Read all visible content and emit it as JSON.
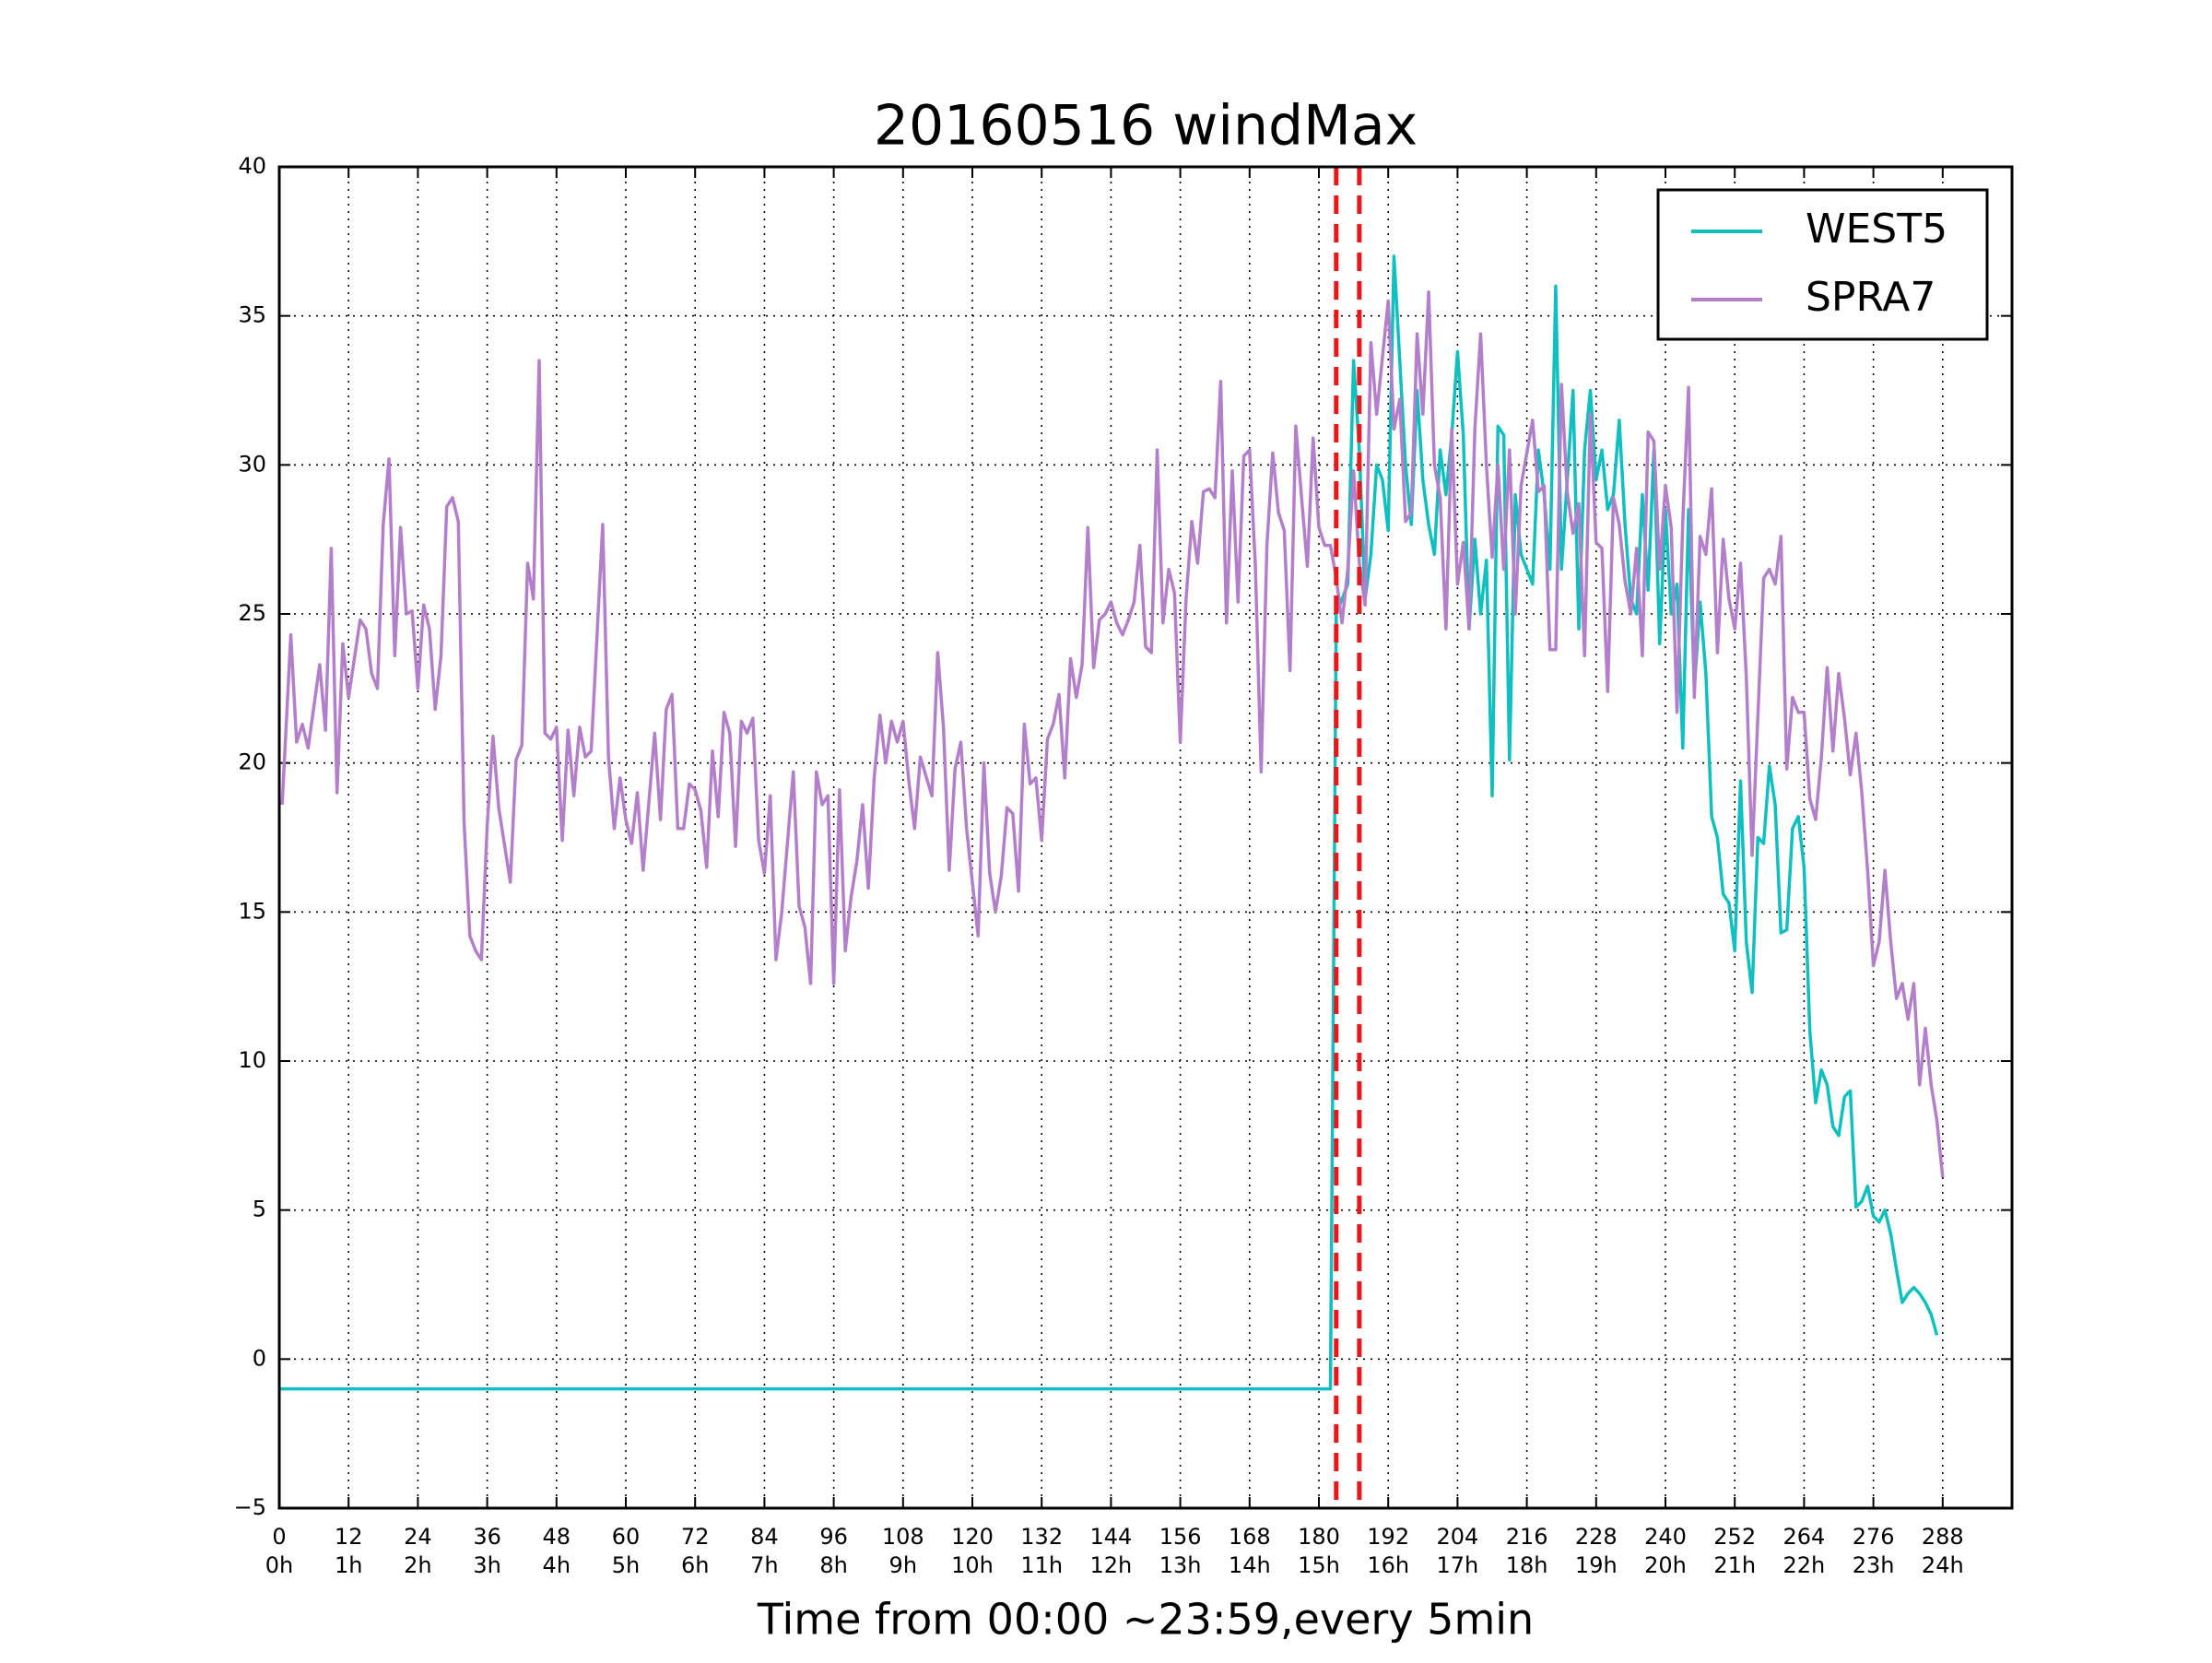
{
  "chart_data": {
    "type": "line",
    "title": "20160516 windMax",
    "x_label": "Time from 00:00 ~23:59,every 5min",
    "xlim": [
      0,
      300
    ],
    "ylim": [
      -5,
      40
    ],
    "xticks": [
      0,
      12,
      24,
      36,
      48,
      60,
      72,
      84,
      96,
      108,
      120,
      132,
      144,
      156,
      168,
      180,
      192,
      204,
      216,
      228,
      240,
      252,
      264,
      276,
      288
    ],
    "xtick_hours": [
      "0h",
      "1h",
      "2h",
      "3h",
      "4h",
      "5h",
      "6h",
      "7h",
      "8h",
      "9h",
      "10h",
      "11h",
      "12h",
      "13h",
      "14h",
      "15h",
      "16h",
      "17h",
      "18h",
      "19h",
      "20h",
      "21h",
      "22h",
      "23h",
      "24h"
    ],
    "yticks": [
      {
        "value": -5,
        "label": "−5"
      },
      0,
      5,
      10,
      15,
      20,
      25,
      30,
      35,
      40
    ],
    "grid": true,
    "legend": "upper right",
    "vlines": [
      183,
      187
    ],
    "vline_color": "#e8171b",
    "series": [
      {
        "name": "WEST5",
        "color": "#10bfbf",
        "x": [
          0,
          182,
          183,
          184,
          185,
          186,
          187,
          188,
          189,
          190,
          191,
          192,
          193,
          194,
          195,
          196,
          197,
          198,
          199,
          200,
          201,
          202,
          203,
          204,
          205,
          206,
          207,
          208,
          209,
          210,
          211,
          212,
          213,
          214,
          215,
          216,
          217,
          218,
          219,
          220,
          221,
          222,
          223,
          224,
          225,
          226,
          227,
          228,
          229,
          230,
          231,
          232,
          233,
          234,
          235,
          236,
          237,
          238,
          239,
          240,
          241,
          242,
          243,
          244,
          245,
          246,
          247,
          248,
          249,
          250,
          251,
          252,
          253,
          254,
          255,
          256,
          257,
          258,
          259,
          260,
          261,
          262,
          263,
          264,
          265,
          266,
          267,
          268,
          269,
          270,
          271,
          272,
          273,
          274,
          275,
          276,
          277,
          278,
          279,
          280,
          281,
          282,
          283,
          284,
          285,
          286,
          287
        ],
        "values": [
          -1,
          -1,
          25,
          25.5,
          26,
          33.5,
          30.5,
          25.5,
          27,
          30,
          29.5,
          27.8,
          37,
          33.5,
          30,
          28,
          32.5,
          29.5,
          28,
          27,
          30.5,
          29,
          31,
          33.8,
          31,
          24.5,
          27.5,
          25,
          26.8,
          18.9,
          31.3,
          31,
          20.1,
          29,
          27,
          26.5,
          26,
          30.5,
          29,
          26.5,
          36,
          26.5,
          29.5,
          32.5,
          24.5,
          30.5,
          32.5,
          29.5,
          30.5,
          28.5,
          29,
          31.5,
          28,
          25.5,
          25,
          29,
          25.8,
          30.5,
          24,
          28.5,
          25,
          26,
          20.5,
          28.5,
          22.5,
          25.4,
          23,
          18.2,
          17.5,
          15.6,
          15.3,
          13.7,
          19.4,
          14,
          12.3,
          17.5,
          17.3,
          19.9,
          18.6,
          14.3,
          14.4,
          17.8,
          18.2,
          16.5,
          11,
          8.6,
          9.7,
          9.2,
          7.8,
          7.5,
          8.8,
          9,
          5.1,
          5.3,
          5.8,
          4.8,
          4.6,
          5,
          4.2,
          3,
          1.9,
          2.2,
          2.4,
          2.2,
          1.9,
          1.5,
          0.8
        ]
      },
      {
        "name": "SPRA7",
        "color": "#b47fca",
        "x": [
          0.5,
          2,
          3,
          4,
          5,
          7,
          8,
          9,
          10,
          11,
          12,
          14,
          15,
          16,
          17,
          18,
          19,
          20,
          21,
          22,
          23,
          24,
          25,
          26,
          27,
          28,
          29,
          30,
          31,
          32,
          33,
          34,
          35,
          36,
          37,
          38,
          40,
          41,
          42,
          43,
          44,
          45,
          46,
          47,
          48,
          49,
          50,
          51,
          52,
          53,
          54,
          56,
          57,
          58,
          59,
          60,
          61,
          62,
          63,
          65,
          66,
          67,
          68,
          69,
          70,
          71,
          72,
          73,
          74,
          75,
          76,
          77,
          78,
          79,
          80,
          81,
          82,
          83,
          84,
          85,
          86,
          87,
          89,
          90,
          91,
          92,
          93,
          94,
          95,
          96,
          97,
          98,
          99,
          100,
          101,
          102,
          103,
          104,
          105,
          106,
          107,
          108,
          109,
          110,
          111,
          113,
          114,
          115,
          116,
          117,
          118,
          119,
          121,
          122,
          123,
          124,
          125,
          126,
          127,
          128,
          129,
          130,
          131,
          132,
          133,
          134,
          135,
          136,
          137,
          138,
          139,
          140,
          141,
          142,
          143,
          144,
          145,
          146,
          147,
          148,
          149,
          150,
          151,
          152,
          153,
          154,
          155,
          156,
          157,
          158,
          159,
          160,
          161,
          162,
          163,
          164,
          165,
          166,
          167,
          168,
          169,
          170,
          171,
          172,
          173,
          174,
          175,
          176,
          177,
          178,
          179,
          180,
          181,
          182,
          183,
          184,
          185,
          186,
          187,
          188,
          189,
          190,
          191,
          192,
          193,
          194,
          195,
          196,
          197,
          198,
          199,
          200,
          201,
          202,
          203,
          204,
          205,
          206,
          207,
          208,
          209,
          210,
          211,
          212,
          213,
          214,
          215,
          216,
          217,
          218,
          219,
          220,
          221,
          222,
          223,
          224,
          225,
          226,
          227,
          228,
          229,
          230,
          231,
          232,
          233,
          234,
          235,
          236,
          237,
          238,
          239,
          240,
          241,
          242,
          243,
          244,
          245,
          246,
          247,
          248,
          249,
          250,
          251,
          252,
          253,
          254,
          255,
          257,
          258,
          259,
          260,
          261,
          262,
          263,
          264,
          265,
          266,
          267,
          268,
          269,
          270,
          271,
          272,
          273,
          274,
          275,
          276,
          277,
          278,
          279,
          280,
          281,
          282,
          283,
          284,
          285,
          286,
          287,
          288
        ],
        "values": [
          18.6,
          24.3,
          20.7,
          21.3,
          20.5,
          23.3,
          21.1,
          27.2,
          19,
          24,
          22.2,
          24.8,
          24.5,
          23,
          22.5,
          28,
          30.2,
          23.6,
          27.9,
          25,
          25.1,
          22.5,
          25.3,
          24.5,
          21.8,
          23.6,
          28.6,
          28.9,
          28.1,
          18,
          14.2,
          13.7,
          13.4,
          17.9,
          20.9,
          18.5,
          16,
          20.1,
          20.6,
          26.7,
          25.5,
          33.5,
          21,
          20.8,
          21.2,
          17.4,
          21.1,
          18.9,
          21.2,
          20.2,
          20.4,
          28,
          20.2,
          17.8,
          19.5,
          18.1,
          17.3,
          19,
          16.4,
          21,
          18.1,
          21.8,
          22.3,
          17.8,
          17.8,
          19.3,
          19.1,
          18.4,
          16.5,
          20.4,
          18.2,
          21.7,
          21,
          17.2,
          21.4,
          21,
          21.5,
          17.4,
          16.3,
          18.9,
          13.4,
          15,
          19.7,
          15.2,
          14.5,
          12.6,
          19.7,
          18.6,
          18.9,
          12.6,
          19.1,
          13.7,
          15.5,
          16.7,
          18.6,
          15.8,
          19.5,
          21.6,
          20,
          21.4,
          20.7,
          21.4,
          19.4,
          17.8,
          20.2,
          18.9,
          23.7,
          21.2,
          16.4,
          19.8,
          20.7,
          17.8,
          14.2,
          20,
          16.3,
          15,
          16.2,
          18.5,
          18.3,
          15.7,
          21.3,
          19.3,
          19.5,
          17.4,
          20.8,
          21.3,
          22.3,
          19.5,
          23.5,
          22.2,
          23.3,
          27.9,
          23.2,
          24.8,
          25,
          25.4,
          24.7,
          24.3,
          24.8,
          25.4,
          27.3,
          23.9,
          23.7,
          30.5,
          24.7,
          26.5,
          25.7,
          20.7,
          25.5,
          28.1,
          26.7,
          29.1,
          29.2,
          28.9,
          32.8,
          24.7,
          29.8,
          25.4,
          30.3,
          30.5,
          26.6,
          19.7,
          27.3,
          30.4,
          28.4,
          27.8,
          23.1,
          31.3,
          28.9,
          26.6,
          30.9,
          27.9,
          27.3,
          27.3,
          26.2,
          24.7,
          26.5,
          29.8,
          26.7,
          25.3,
          34.1,
          31.7,
          33.6,
          35.5,
          31.2,
          32.2,
          28.1,
          28.4,
          34.4,
          31.7,
          35.8,
          30,
          28.9,
          24.5,
          31.2,
          26,
          27.4,
          24.5,
          31.2,
          34.4,
          30,
          26.9,
          30,
          26.5,
          30.5,
          25,
          29.3,
          30.4,
          31.5,
          29.1,
          29.3,
          23.8,
          23.8,
          32.7,
          29.1,
          27.7,
          28.7,
          23.6,
          31.7,
          27.4,
          27.2,
          22.4,
          28.9,
          28,
          26.1,
          25,
          27.2,
          23.6,
          31.1,
          30.8,
          26.5,
          29.3,
          27.9,
          21.7,
          28.1,
          32.6,
          22.2,
          27.6,
          27,
          29.2,
          23.7,
          27.5,
          25.5,
          24.5,
          26.7,
          22.9,
          16.9,
          26.2,
          26.5,
          26,
          27.6,
          19.8,
          22.2,
          21.7,
          21.7,
          18.8,
          18.1,
          20.2,
          23.2,
          20.4,
          23,
          21.5,
          19.6,
          21,
          19,
          16.4,
          13.2,
          14,
          16.4,
          14,
          12.1,
          12.6,
          11.4,
          12.6,
          9.2,
          11.1,
          9.2,
          8,
          6.1
        ]
      }
    ]
  }
}
